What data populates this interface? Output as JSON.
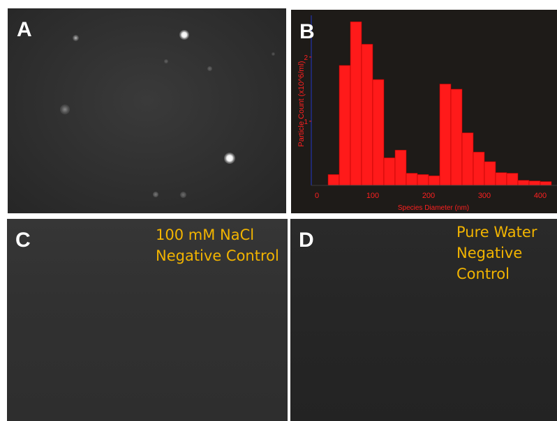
{
  "panels": {
    "a": {
      "letter": "A"
    },
    "b": {
      "letter": "B"
    },
    "c": {
      "letter": "C",
      "label_lines": [
        "100 mM NaCl",
        "Negative Control"
      ]
    },
    "d": {
      "letter": "D",
      "label_lines": [
        "Pure Water",
        "Negative",
        "Control"
      ]
    }
  },
  "chart_data": {
    "type": "bar",
    "xlabel": "Species Diameter (nm)",
    "ylabel": "Particle Count (x10^6/ml)",
    "xlim": [
      -10,
      430
    ],
    "ylim": [
      0,
      2.65
    ],
    "x_ticks": [
      0,
      100,
      200,
      300,
      400
    ],
    "y_ticks": [
      1,
      2
    ],
    "bin_width": 20,
    "bins": [
      {
        "x": 20,
        "value": 0.17
      },
      {
        "x": 40,
        "value": 1.87
      },
      {
        "x": 60,
        "value": 2.55
      },
      {
        "x": 80,
        "value": 2.2
      },
      {
        "x": 100,
        "value": 1.65
      },
      {
        "x": 120,
        "value": 0.43
      },
      {
        "x": 140,
        "value": 0.55
      },
      {
        "x": 160,
        "value": 0.19
      },
      {
        "x": 180,
        "value": 0.17
      },
      {
        "x": 200,
        "value": 0.15
      },
      {
        "x": 220,
        "value": 1.58
      },
      {
        "x": 240,
        "value": 1.5
      },
      {
        "x": 260,
        "value": 0.82
      },
      {
        "x": 280,
        "value": 0.52
      },
      {
        "x": 300,
        "value": 0.37
      },
      {
        "x": 320,
        "value": 0.2
      },
      {
        "x": 340,
        "value": 0.19
      },
      {
        "x": 360,
        "value": 0.08
      },
      {
        "x": 380,
        "value": 0.07
      },
      {
        "x": 400,
        "value": 0.06
      }
    ],
    "colors": {
      "bar": "#ff1a1a",
      "background": "#1e1b18",
      "text": "#ff2020",
      "axis_left": "#2233aa"
    }
  }
}
